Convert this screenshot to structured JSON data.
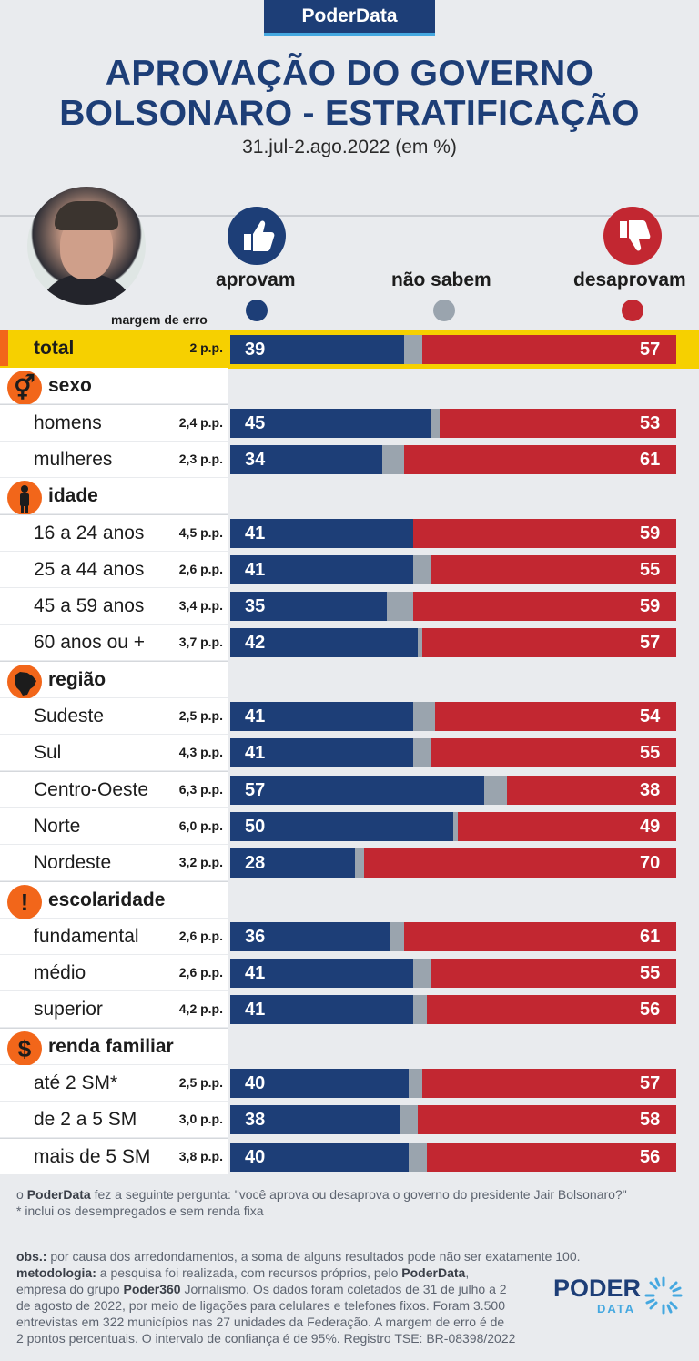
{
  "header": {
    "badge": "PoderData",
    "title_line1": "APROVAÇÃO DO GOVERNO",
    "title_line2": "BOLSONARO - ESTRATIFICAÇÃO",
    "subtitle": "31.jul-2.ago.2022 (em %)"
  },
  "legend": {
    "approve": "aprovam",
    "dontknow": "não sabem",
    "disapprove": "desaprovam",
    "margin_header": "margem de erro"
  },
  "colors": {
    "approve": "#1d3e77",
    "dontknow": "#9aa4ae",
    "disapprove": "#c22731",
    "highlight": "#f6d000",
    "accent": "#f2661a"
  },
  "chart_data": {
    "type": "bar",
    "orientation": "horizontal-stacked",
    "units": "%",
    "series": [
      "aprovam",
      "não sabem",
      "desaprovam"
    ],
    "rows": [
      {
        "kind": "total",
        "label": "total",
        "moe": "2 p.p.",
        "approve": 39,
        "disapprove": 57
      },
      {
        "kind": "category",
        "label": "sexo",
        "icon": "gender-icon"
      },
      {
        "kind": "row",
        "label": "homens",
        "moe": "2,4 p.p.",
        "approve": 45,
        "disapprove": 53
      },
      {
        "kind": "row",
        "label": "mulheres",
        "moe": "2,3 p.p.",
        "approve": 34,
        "disapprove": 61
      },
      {
        "kind": "category",
        "label": "idade",
        "icon": "person-icon"
      },
      {
        "kind": "row",
        "label": "16 a 24 anos",
        "moe": "4,5 p.p.",
        "approve": 41,
        "disapprove": 59
      },
      {
        "kind": "row",
        "label": "25 a 44 anos",
        "moe": "2,6 p.p.",
        "approve": 41,
        "disapprove": 55
      },
      {
        "kind": "row",
        "label": "45 a 59 anos",
        "moe": "3,4 p.p.",
        "approve": 35,
        "disapprove": 59
      },
      {
        "kind": "row",
        "label": "60 anos ou +",
        "moe": "3,7 p.p.",
        "approve": 42,
        "disapprove": 57
      },
      {
        "kind": "category",
        "label": "região",
        "icon": "brazil-map-icon"
      },
      {
        "kind": "row",
        "label": "Sudeste",
        "moe": "2,5 p.p.",
        "approve": 41,
        "disapprove": 54
      },
      {
        "kind": "row",
        "label": "Sul",
        "moe": "4,3 p.p.",
        "approve": 41,
        "disapprove": 55
      },
      {
        "kind": "row",
        "label": "Centro-Oeste",
        "moe": "6,3 p.p.",
        "approve": 57,
        "disapprove": 38
      },
      {
        "kind": "row",
        "label": "Norte",
        "moe": "6,0 p.p.",
        "approve": 50,
        "disapprove": 49
      },
      {
        "kind": "row",
        "label": "Nordeste",
        "moe": "3,2 p.p.",
        "approve": 28,
        "disapprove": 70
      },
      {
        "kind": "category",
        "label": "escolaridade",
        "icon": "exclamation-icon"
      },
      {
        "kind": "row",
        "label": "fundamental",
        "moe": "2,6 p.p.",
        "approve": 36,
        "disapprove": 61
      },
      {
        "kind": "row",
        "label": "médio",
        "moe": "2,6 p.p.",
        "approve": 41,
        "disapprove": 55
      },
      {
        "kind": "row",
        "label": "superior",
        "moe": "4,2 p.p.",
        "approve": 41,
        "disapprove": 56
      },
      {
        "kind": "category",
        "label": "renda familiar",
        "icon": "dollar-icon"
      },
      {
        "kind": "row",
        "label": "até 2 SM*",
        "moe": "2,5 p.p.",
        "approve": 40,
        "disapprove": 57
      },
      {
        "kind": "row",
        "label": "de 2 a 5 SM",
        "moe": "3,0 p.p.",
        "approve": 38,
        "disapprove": 58
      },
      {
        "kind": "row",
        "label": "mais de 5 SM",
        "moe": "3,8 p.p.",
        "approve": 40,
        "disapprove": 56
      }
    ]
  },
  "footer": {
    "question_prefix": "o ",
    "question_brand": "PoderData",
    "question_text": " fez a seguinte pergunta: \"você aprova ou desaprova o governo do presidente Jair Bolsonaro?\"",
    "footnote": "* inclui os desempregados e sem renda fixa",
    "obs_label": "obs.:",
    "obs_text": " por causa dos arredondamentos, a soma de alguns resultados pode não ser exatamente 100.",
    "method_label": "metodologia:",
    "method_line1": " a pesquisa foi realizada, com recursos próprios, pelo ",
    "method_brand": "PoderData",
    "method_line1_end": ",",
    "method_line2a": "empresa do grupo ",
    "method_line2_brand": "Poder360",
    "method_line2b": " Jornalismo. Os dados foram coletados de 31 de julho a 2",
    "method_line3": "de agosto de 2022, por meio de ligações para celulares e telefones fixos. Foram 3.500",
    "method_line4": "entrevistas em 322 municípios nas 27 unidades da Federação. A margem de erro é de",
    "method_line5": "2 pontos percentuais. O intervalo de confiança é de 95%. Registro TSE: BR-08398/2022"
  },
  "logo": {
    "word1": "PODER",
    "word2": "DATA"
  }
}
